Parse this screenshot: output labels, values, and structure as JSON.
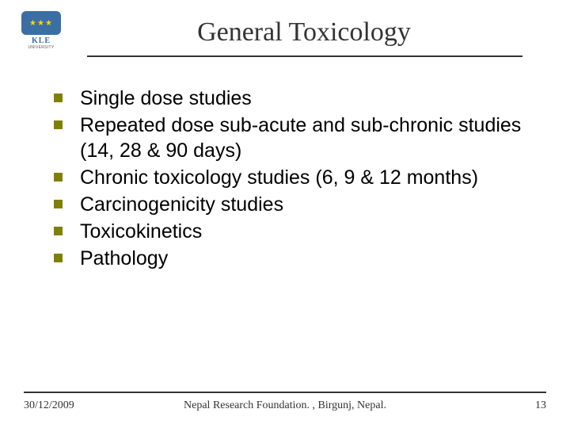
{
  "logo": {
    "text": "KLE",
    "subtext": "UNIVERSITY"
  },
  "title": "General Toxicology",
  "bullets": [
    "Single dose studies",
    "Repeated dose sub-acute and sub-chronic studies (14, 28 & 90 days)",
    "Chronic toxicology studies (6, 9 & 12 months)",
    "Carcinogenicity studies",
    "Toxicokinetics",
    "Pathology"
  ],
  "footer": {
    "date": "30/12/2009",
    "center": "Nepal Research Foundation. , Birgunj, Nepal.",
    "page": "13"
  },
  "colors": {
    "bullet": "#808000",
    "rule": "#333333",
    "logo_blue": "#3a6ea5",
    "text": "#000000",
    "title": "#333333"
  },
  "typography": {
    "title_fontsize": 34,
    "body_fontsize": 25,
    "footer_fontsize": 14
  }
}
